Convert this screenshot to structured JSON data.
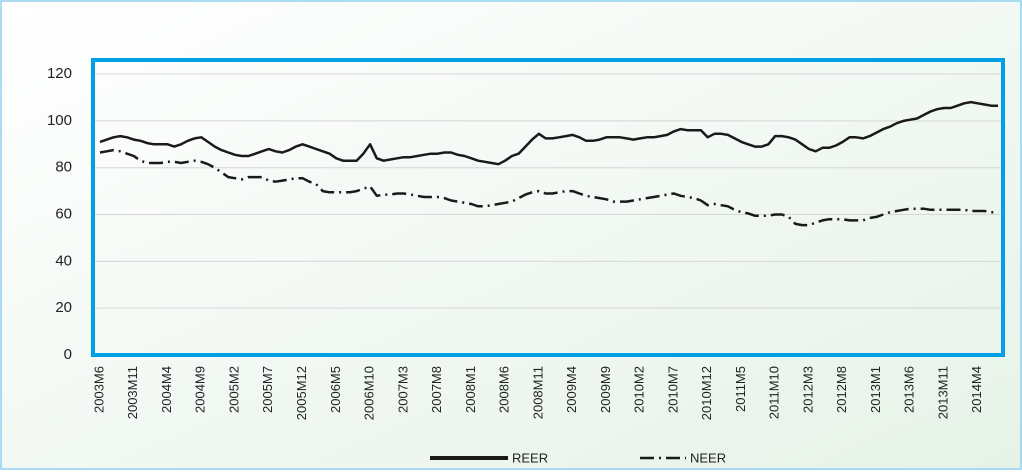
{
  "chart_data": {
    "type": "line",
    "categories": [
      "2003M6",
      null,
      null,
      null,
      null,
      "2003M11",
      null,
      null,
      null,
      null,
      "2004M4",
      null,
      null,
      null,
      null,
      "2004M9",
      null,
      null,
      null,
      null,
      "2005M2",
      null,
      null,
      null,
      null,
      "2005M7",
      null,
      null,
      null,
      null,
      "2005M12",
      null,
      null,
      null,
      null,
      "2006M5",
      null,
      null,
      null,
      null,
      "2006M10",
      null,
      null,
      null,
      null,
      "2007M3",
      null,
      null,
      null,
      null,
      "2007M8",
      null,
      null,
      null,
      null,
      "2008M1",
      null,
      null,
      null,
      null,
      "2008M6",
      null,
      null,
      null,
      null,
      "2008M11",
      null,
      null,
      null,
      null,
      "2009M4",
      null,
      null,
      null,
      null,
      "2009M9",
      null,
      null,
      null,
      null,
      "2010M2",
      null,
      null,
      null,
      null,
      "2010M7",
      null,
      null,
      null,
      null,
      "2010M12",
      null,
      null,
      null,
      null,
      "2011M5",
      null,
      null,
      null,
      null,
      "2011M10",
      null,
      null,
      null,
      null,
      "2012M3",
      null,
      null,
      null,
      null,
      "2012M8",
      null,
      null,
      null,
      null,
      "2013M1",
      null,
      null,
      null,
      null,
      "2013M6",
      null,
      null,
      null,
      null,
      "2013M11",
      null,
      null,
      null,
      null,
      "2014M4",
      null,
      null,
      null
    ],
    "series": [
      {
        "name": "REER",
        "color": "#1a1a1a",
        "dash": "solid",
        "values": [
          91,
          92,
          93,
          93.5,
          93,
          92,
          91.5,
          90.5,
          90,
          90,
          90,
          89,
          90,
          91.5,
          92.5,
          93,
          91,
          89,
          87.5,
          86.5,
          85.5,
          85,
          85,
          86,
          87,
          88,
          87,
          86.5,
          87.5,
          89,
          90,
          89,
          88,
          87,
          86,
          84,
          83,
          83,
          83,
          86,
          90,
          84,
          83,
          83.5,
          84,
          84.5,
          84.5,
          85,
          85.5,
          86,
          86,
          86.5,
          86.5,
          85.5,
          85,
          84,
          83,
          82.5,
          82,
          81.5,
          83,
          85,
          86,
          89,
          92,
          94.5,
          92.5,
          92.5,
          93,
          93.5,
          94,
          93,
          91.5,
          91.5,
          92,
          93,
          93,
          93,
          92.5,
          92,
          92.5,
          93,
          93,
          93.5,
          94,
          95.5,
          96.5,
          96,
          96,
          96,
          93,
          94.5,
          94.5,
          94,
          92.5,
          91,
          90,
          89,
          89,
          90,
          93.5,
          93.5,
          93,
          92,
          90,
          88,
          87,
          88.5,
          88.5,
          89.5,
          91,
          93,
          93,
          92.5,
          93.5,
          95,
          96.5,
          97.5,
          99,
          100,
          100.5,
          101,
          102.5,
          104,
          105,
          105.5,
          105.5,
          106.5,
          107.5,
          108,
          107.5,
          107,
          106.5,
          106.5
        ]
      },
      {
        "name": "NEER",
        "color": "#1a1a1a",
        "dash": "dashdot",
        "values": [
          86.5,
          87,
          87.5,
          87,
          86,
          85,
          83,
          82,
          82,
          82,
          82.5,
          82.5,
          82,
          82.5,
          83,
          82.5,
          81.5,
          80,
          78,
          76,
          75.5,
          75,
          76,
          76,
          76,
          74.5,
          74,
          74.5,
          75,
          75.5,
          75.5,
          74,
          73,
          70,
          69.5,
          69.5,
          69.5,
          69.5,
          70,
          71,
          72,
          68,
          68.5,
          68.5,
          69,
          69,
          68.5,
          68,
          67.5,
          67.5,
          67.5,
          67,
          66,
          65.5,
          65,
          64.5,
          63.5,
          63.5,
          64,
          64.5,
          65,
          65.5,
          67,
          68.5,
          69.5,
          70,
          69,
          69,
          69.5,
          70,
          70,
          69,
          68,
          67.5,
          67,
          66.5,
          65.5,
          65.5,
          65.5,
          66,
          66.5,
          67,
          67.5,
          68,
          68.5,
          69,
          68,
          67.5,
          67,
          66,
          64,
          64.5,
          64,
          63.5,
          62,
          61,
          60.5,
          59.5,
          59.5,
          59.5,
          60,
          60,
          59,
          56,
          55.5,
          55.5,
          56.5,
          57.5,
          58,
          58,
          58,
          57.5,
          57.5,
          57.5,
          58.5,
          59,
          60,
          61,
          61.5,
          62,
          62.5,
          62.5,
          62.5,
          62,
          62,
          62,
          62,
          62,
          62,
          61.5,
          61.5,
          61.5,
          61,
          61
        ]
      }
    ],
    "ylim": [
      0,
      126
    ],
    "yticks": [
      0,
      20,
      40,
      60,
      80,
      100,
      120
    ],
    "grid": true,
    "legend": "bottom",
    "frame_color": "#00a0e6"
  }
}
